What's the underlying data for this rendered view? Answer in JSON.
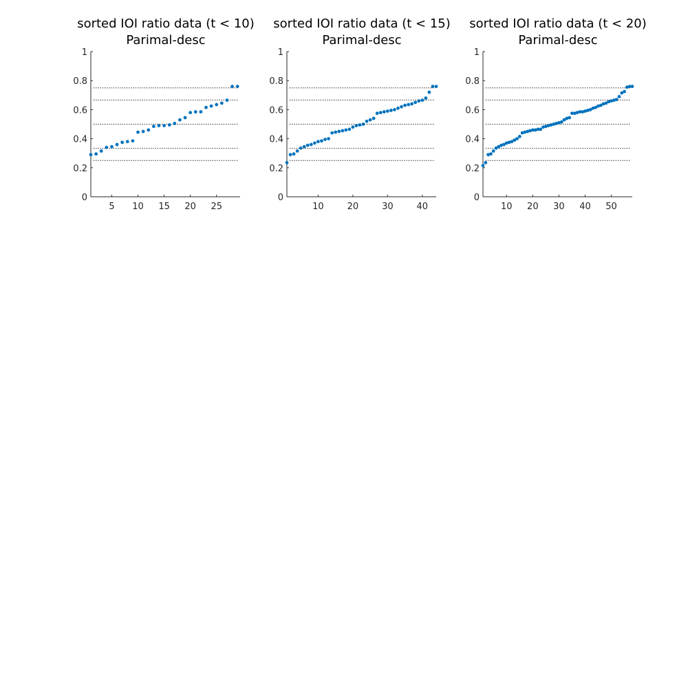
{
  "chart_data": [
    {
      "type": "scatter",
      "title": "sorted IOI ratio data (t < 10)",
      "subtitle": "Parimal-desc",
      "xlim": [
        1,
        29.5
      ],
      "ylim": [
        0,
        1
      ],
      "xticks": [
        5,
        10,
        15,
        20,
        25
      ],
      "yticks": [
        0,
        0.2,
        0.4,
        0.6,
        0.8,
        1
      ],
      "ytick_labels": [
        "0",
        "0.2",
        "0.4",
        "0.6",
        "0.8",
        "1"
      ],
      "reference_lines": [
        0.25,
        0.3333,
        0.5,
        0.6667,
        0.75
      ],
      "marker_color": "#0072BD",
      "ref_line_color": "#000000",
      "x": [
        1,
        2,
        3,
        4,
        5,
        6,
        7,
        8,
        9,
        10,
        11,
        12,
        13,
        14,
        15,
        16,
        17,
        18,
        19,
        20,
        21,
        22,
        23,
        24,
        25,
        26,
        27,
        28,
        29
      ],
      "y": [
        0.29,
        0.295,
        0.315,
        0.34,
        0.345,
        0.36,
        0.375,
        0.38,
        0.385,
        0.445,
        0.45,
        0.46,
        0.485,
        0.49,
        0.49,
        0.495,
        0.505,
        0.53,
        0.545,
        0.58,
        0.585,
        0.585,
        0.615,
        0.625,
        0.635,
        0.645,
        0.665,
        0.76,
        0.76
      ]
    },
    {
      "type": "scatter",
      "title": "sorted IOI ratio data (t < 15)",
      "subtitle": "Parimal-desc",
      "xlim": [
        1,
        44
      ],
      "ylim": [
        0,
        1
      ],
      "xticks": [
        10,
        20,
        30,
        40
      ],
      "yticks": [
        0,
        0.2,
        0.4,
        0.6,
        0.8,
        1
      ],
      "ytick_labels": [
        "0",
        "0.2",
        "0.4",
        "0.6",
        "0.8",
        "1"
      ],
      "reference_lines": [
        0.25,
        0.3333,
        0.5,
        0.6667,
        0.75
      ],
      "marker_color": "#0072BD",
      "ref_line_color": "#000000",
      "x": [
        1,
        2,
        3,
        4,
        5,
        6,
        7,
        8,
        9,
        10,
        11,
        12,
        13,
        14,
        15,
        16,
        17,
        18,
        19,
        20,
        21,
        22,
        23,
        24,
        25,
        26,
        27,
        28,
        29,
        30,
        31,
        32,
        33,
        34,
        35,
        36,
        37,
        38,
        39,
        40,
        41,
        42,
        43,
        44
      ],
      "y": [
        0.235,
        0.29,
        0.295,
        0.315,
        0.335,
        0.345,
        0.355,
        0.36,
        0.37,
        0.38,
        0.385,
        0.395,
        0.4,
        0.44,
        0.445,
        0.45,
        0.455,
        0.46,
        0.465,
        0.48,
        0.49,
        0.495,
        0.5,
        0.52,
        0.53,
        0.54,
        0.575,
        0.58,
        0.585,
        0.59,
        0.595,
        0.6,
        0.61,
        0.62,
        0.63,
        0.635,
        0.64,
        0.65,
        0.66,
        0.665,
        0.68,
        0.72,
        0.76,
        0.76
      ]
    },
    {
      "type": "scatter",
      "title": "sorted IOI ratio data (t < 20)",
      "subtitle": "Parimal-desc",
      "xlim": [
        1,
        58
      ],
      "ylim": [
        0,
        1
      ],
      "xticks": [
        10,
        20,
        30,
        40,
        50
      ],
      "yticks": [
        0,
        0.2,
        0.4,
        0.6,
        0.8,
        1
      ],
      "ytick_labels": [
        "0",
        "0.2",
        "0.4",
        "0.6",
        "0.8",
        "1"
      ],
      "reference_lines": [
        0.25,
        0.3333,
        0.5,
        0.6667,
        0.75
      ],
      "marker_color": "#0072BD",
      "ref_line_color": "#000000",
      "x": [
        1,
        2,
        3,
        4,
        5,
        6,
        7,
        8,
        9,
        10,
        11,
        12,
        13,
        14,
        15,
        16,
        17,
        18,
        19,
        20,
        21,
        22,
        23,
        24,
        25,
        26,
        27,
        28,
        29,
        30,
        31,
        32,
        33,
        34,
        35,
        36,
        37,
        38,
        39,
        40,
        41,
        42,
        43,
        44,
        45,
        46,
        47,
        48,
        49,
        50,
        51,
        52,
        53,
        54,
        55,
        56,
        57,
        58
      ],
      "y": [
        0.215,
        0.235,
        0.29,
        0.295,
        0.315,
        0.335,
        0.345,
        0.355,
        0.36,
        0.37,
        0.375,
        0.38,
        0.39,
        0.4,
        0.415,
        0.44,
        0.445,
        0.45,
        0.455,
        0.46,
        0.46,
        0.465,
        0.465,
        0.48,
        0.485,
        0.49,
        0.495,
        0.5,
        0.505,
        0.51,
        0.515,
        0.53,
        0.54,
        0.545,
        0.575,
        0.575,
        0.58,
        0.585,
        0.585,
        0.59,
        0.595,
        0.6,
        0.61,
        0.615,
        0.625,
        0.63,
        0.64,
        0.645,
        0.655,
        0.66,
        0.665,
        0.67,
        0.69,
        0.715,
        0.725,
        0.755,
        0.76,
        0.76
      ]
    }
  ]
}
